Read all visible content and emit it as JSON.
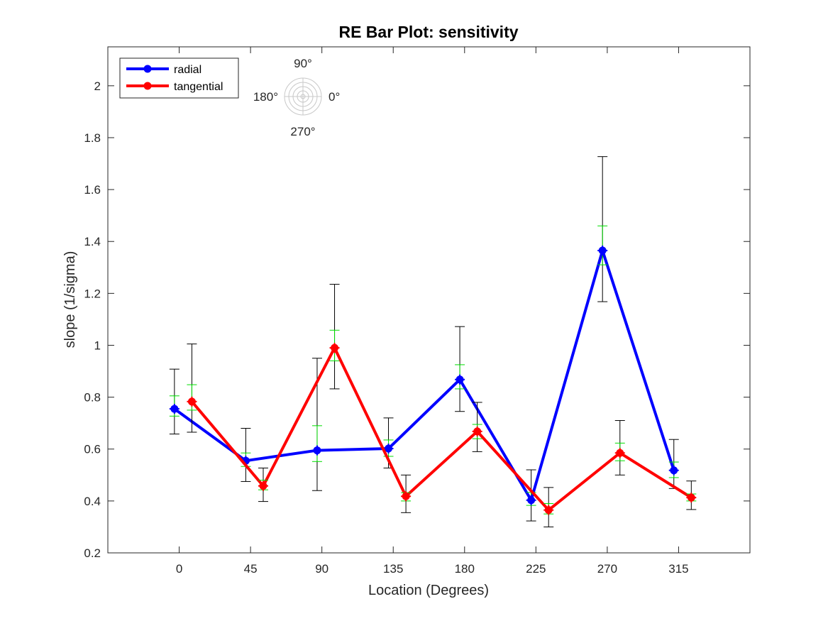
{
  "chart_data": {
    "type": "line",
    "title": "RE Bar Plot: sensitivity",
    "xlabel": "Location (Degrees)",
    "ylabel": "slope (1/sigma)",
    "xlim": [
      -45,
      360
    ],
    "ylim": [
      0.2,
      2.15
    ],
    "xticks": [
      0,
      45,
      90,
      135,
      180,
      225,
      270,
      315
    ],
    "yticks": [
      0.2,
      0.4,
      0.6,
      0.8,
      1,
      1.2,
      1.4,
      1.6,
      1.8,
      2
    ],
    "ytick_labels": [
      "0.2",
      "0.4",
      "0.6",
      "0.8",
      "1",
      "1.2",
      "1.4",
      "1.6",
      "1.8",
      "2"
    ],
    "grid": false,
    "legend_location": "top-left",
    "series": [
      {
        "name": "radial",
        "color": "#0000ff",
        "x": [
          -3,
          42,
          87,
          132,
          177,
          222,
          267,
          312
        ],
        "y": [
          0.755,
          0.555,
          0.595,
          0.602,
          0.868,
          0.403,
          1.365,
          0.518
        ],
        "ci_low": [
          0.658,
          0.475,
          0.44,
          0.527,
          0.745,
          0.323,
          1.168,
          0.448
        ],
        "ci_high": [
          0.908,
          0.68,
          0.95,
          0.72,
          1.072,
          0.52,
          1.727,
          0.637
        ],
        "se_low": [
          0.727,
          0.533,
          0.552,
          0.572,
          0.832,
          0.383,
          1.31,
          0.49
        ],
        "se_high": [
          0.805,
          0.585,
          0.69,
          0.635,
          0.925,
          0.433,
          1.46,
          0.55
        ]
      },
      {
        "name": "tangential",
        "color": "#ff0000",
        "x": [
          8,
          53,
          98,
          143,
          188,
          233,
          278,
          323
        ],
        "y": [
          0.783,
          0.458,
          0.99,
          0.418,
          0.668,
          0.365,
          0.585,
          0.413
        ],
        "ci_low": [
          0.665,
          0.398,
          0.832,
          0.355,
          0.59,
          0.3,
          0.5,
          0.367
        ],
        "ci_high": [
          1.005,
          0.527,
          1.235,
          0.5,
          0.78,
          0.452,
          0.71,
          0.477
        ],
        "se_low": [
          0.75,
          0.443,
          0.94,
          0.4,
          0.64,
          0.35,
          0.555,
          0.4
        ],
        "se_high": [
          0.848,
          0.48,
          1.058,
          0.432,
          0.695,
          0.39,
          0.623,
          0.427
        ]
      }
    ],
    "errorbar_colors": {
      "ci": "#000000",
      "se": "#00dd00"
    },
    "inset": {
      "type": "polar-orientation-key",
      "labels": {
        "top": "90°",
        "left": "180°",
        "right": "0°",
        "bottom": "270°"
      }
    }
  }
}
